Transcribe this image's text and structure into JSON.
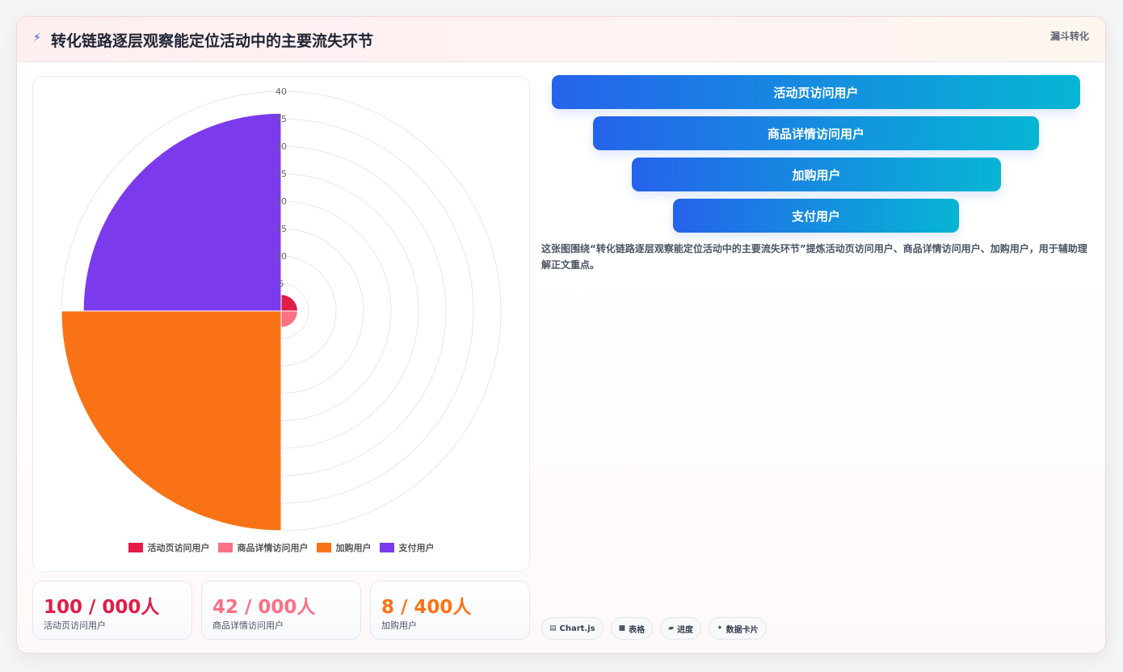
{
  "header": {
    "icon": "bolt-icon",
    "title": "转化链路逐层观察能定位活动中的主要流失环节",
    "tag": "漏斗转化"
  },
  "chart_data": {
    "type": "polarArea",
    "categories": [
      "活动页访问用户",
      "商品详情访问用户",
      "加购用户",
      "支付用户"
    ],
    "values": [
      3,
      3,
      40,
      36
    ],
    "colors": [
      "#e11d48",
      "#fb7185",
      "#f97316",
      "#7c3aed"
    ],
    "r_ticks": [
      5,
      10,
      15,
      20,
      25,
      30,
      35,
      40
    ],
    "rlim": [
      0,
      40
    ],
    "legend_position": "bottom",
    "grid": true
  },
  "stats": [
    {
      "value": "100 / 000人",
      "label": "活动页访问用户",
      "color": "#e11d48"
    },
    {
      "value": "42 / 000人",
      "label": "商品详情访问用户",
      "color": "#fb7185"
    },
    {
      "value": "8 / 400人",
      "label": "加购用户",
      "color": "#f97316"
    }
  ],
  "funnel": [
    {
      "label": "活动页访问用户"
    },
    {
      "label": "商品详情访问用户"
    },
    {
      "label": "加购用户"
    },
    {
      "label": "支付用户"
    }
  ],
  "description": "这张图围绕“转化链路逐层观察能定位活动中的主要流失环节”提炼活动页访问用户、商品详情访问用户、加购用户，用于辅助理解正文重点。",
  "chips": [
    {
      "icon": "chart-icon",
      "label": "Chart.js"
    },
    {
      "icon": "table-icon",
      "label": "表格"
    },
    {
      "icon": "progress-icon",
      "label": "进度"
    },
    {
      "icon": "sparkle-icon",
      "label": "数据卡片"
    }
  ]
}
